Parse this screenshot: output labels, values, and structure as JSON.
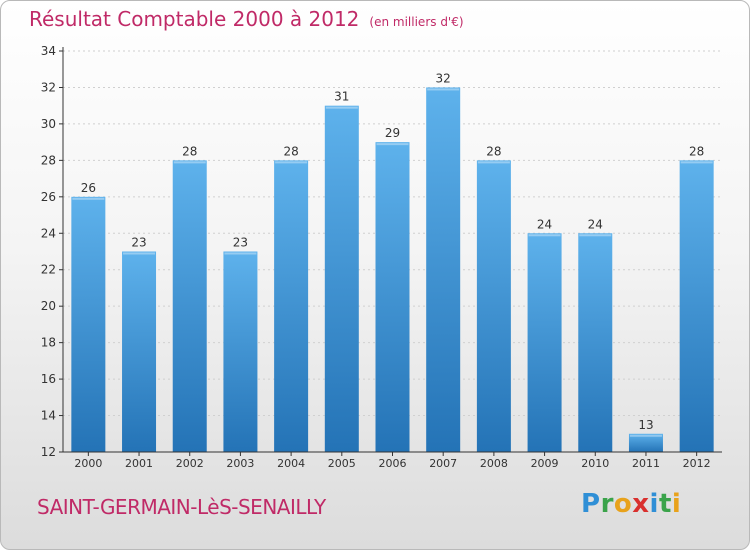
{
  "title": "Résultat Comptable 2000 à 2012",
  "subtitle": "(en milliers d'€)",
  "place": "SAINT-GERMAIN-LèS-SENAILLY",
  "logo": {
    "text": "Proxiti",
    "letters": [
      {
        "ch": "P",
        "color": "#2f8fd6"
      },
      {
        "ch": "r",
        "color": "#3aa34a"
      },
      {
        "ch": "o",
        "color": "#e8a21b"
      },
      {
        "ch": "x",
        "color": "#d9302e"
      },
      {
        "ch": "i",
        "color": "#2f8fd6"
      },
      {
        "ch": "t",
        "color": "#3aa34a"
      },
      {
        "ch": "i",
        "color": "#e8a21b"
      }
    ]
  },
  "colors": {
    "title": "#c02a67",
    "bar_top": "#5eb2ec",
    "bar_bottom": "#2473b6",
    "axis": "#333333",
    "gridline": "#d0d0d0"
  },
  "chart_data": {
    "type": "bar",
    "title": "Résultat Comptable 2000 à 2012",
    "subtitle": "(en milliers d'€)",
    "xlabel": "",
    "ylabel": "",
    "categories": [
      "2000",
      "2001",
      "2002",
      "2003",
      "2004",
      "2005",
      "2006",
      "2007",
      "2008",
      "2009",
      "2010",
      "2011",
      "2012"
    ],
    "values": [
      26,
      23,
      28,
      23,
      28,
      31,
      29,
      32,
      28,
      24,
      24,
      13,
      28
    ],
    "ylim": [
      12,
      34
    ],
    "yticks": [
      12,
      14,
      16,
      18,
      20,
      22,
      24,
      26,
      28,
      30,
      32,
      34
    ],
    "grid": true
  }
}
